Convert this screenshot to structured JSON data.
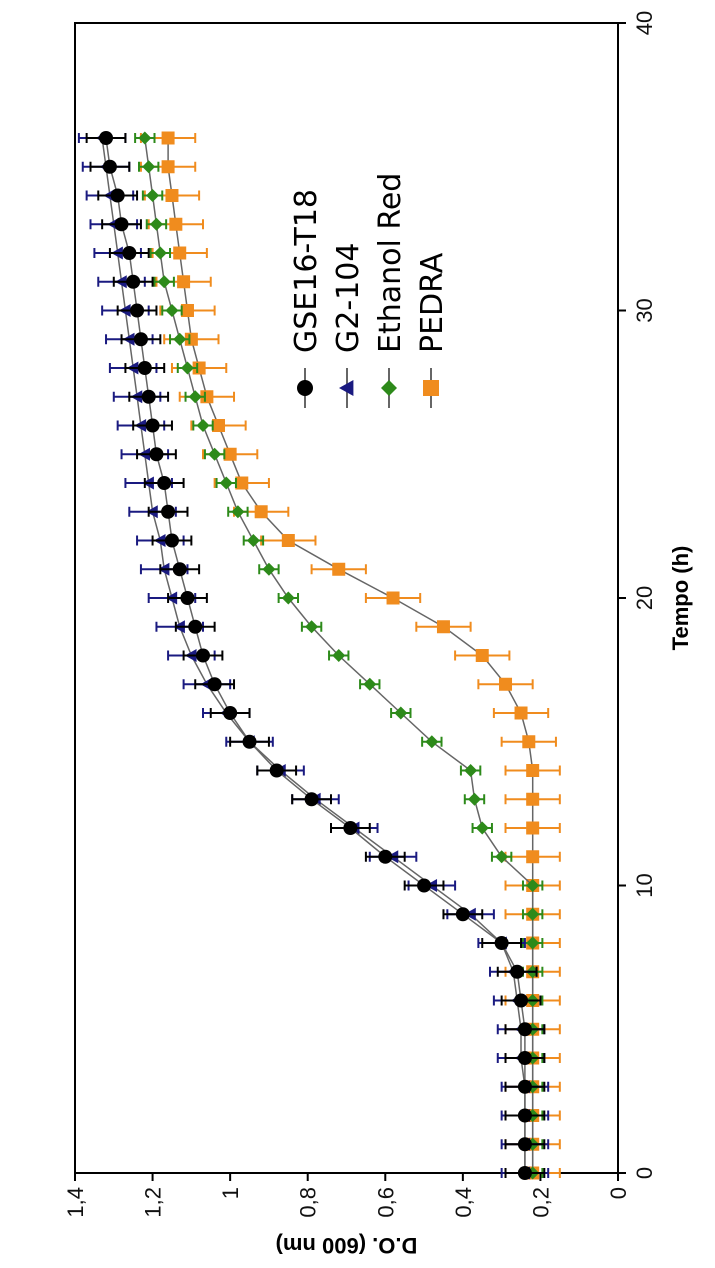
{
  "chart_data": {
    "type": "line",
    "xlabel": "Tempo (h)",
    "ylabel": "D.O. (600 nm)",
    "xlim": [
      0,
      40
    ],
    "ylim": [
      0,
      1.4
    ],
    "x_ticks": [
      "0",
      "10",
      "20",
      "30",
      "40"
    ],
    "y_ticks": [
      "0",
      "0,2",
      "0,4",
      "0,6",
      "0,8",
      "1",
      "1,2",
      "1,4"
    ],
    "legend_placement": "top-right",
    "grid": false,
    "series": [
      {
        "name": "GSE16-T18",
        "color": "#000000",
        "marker": "circle",
        "x": [
          0,
          1,
          2,
          3,
          4,
          5,
          6,
          7,
          8,
          9,
          10,
          11,
          12,
          13,
          14,
          15,
          16,
          17,
          18,
          19,
          20,
          21,
          22,
          23,
          24,
          25,
          26,
          27,
          28,
          29,
          30,
          31,
          32,
          33,
          34,
          35,
          36
        ],
        "y": [
          0.24,
          0.24,
          0.24,
          0.24,
          0.24,
          0.24,
          0.25,
          0.26,
          0.3,
          0.4,
          0.5,
          0.6,
          0.69,
          0.79,
          0.88,
          0.95,
          1.0,
          1.04,
          1.07,
          1.09,
          1.11,
          1.13,
          1.15,
          1.16,
          1.17,
          1.19,
          1.2,
          1.21,
          1.22,
          1.23,
          1.24,
          1.25,
          1.26,
          1.28,
          1.29,
          1.31,
          1.32
        ],
        "error": 0.05
      },
      {
        "name": "G2-104",
        "color": "#1a1a80",
        "marker": "triangle",
        "x": [
          0,
          1,
          2,
          3,
          4,
          5,
          6,
          7,
          8,
          9,
          10,
          11,
          12,
          13,
          14,
          15,
          16,
          17,
          18,
          19,
          20,
          21,
          22,
          23,
          24,
          25,
          26,
          27,
          28,
          29,
          30,
          31,
          32,
          33,
          34,
          35,
          36
        ],
        "y": [
          0.24,
          0.24,
          0.24,
          0.24,
          0.25,
          0.25,
          0.26,
          0.27,
          0.3,
          0.38,
          0.48,
          0.58,
          0.68,
          0.78,
          0.87,
          0.95,
          1.01,
          1.06,
          1.1,
          1.13,
          1.15,
          1.17,
          1.18,
          1.2,
          1.21,
          1.22,
          1.23,
          1.24,
          1.25,
          1.26,
          1.27,
          1.28,
          1.29,
          1.3,
          1.31,
          1.32,
          1.33
        ],
        "error": 0.06
      },
      {
        "name": "Ethanol Red",
        "color": "#2d8a1a",
        "marker": "diamond",
        "x": [
          0,
          1,
          2,
          3,
          4,
          5,
          6,
          7,
          8,
          9,
          10,
          11,
          12,
          13,
          14,
          15,
          16,
          17,
          18,
          19,
          20,
          21,
          22,
          23,
          24,
          25,
          26,
          27,
          28,
          29,
          30,
          31,
          32,
          33,
          34,
          35,
          36
        ],
        "y": [
          0.22,
          0.22,
          0.22,
          0.22,
          0.22,
          0.22,
          0.22,
          0.22,
          0.22,
          0.22,
          0.22,
          0.3,
          0.35,
          0.37,
          0.38,
          0.48,
          0.56,
          0.64,
          0.72,
          0.79,
          0.85,
          0.9,
          0.94,
          0.98,
          1.01,
          1.04,
          1.07,
          1.09,
          1.11,
          1.13,
          1.15,
          1.17,
          1.18,
          1.19,
          1.2,
          1.21,
          1.22
        ],
        "error": 0.025
      },
      {
        "name": "PEDRA",
        "color": "#f08c1e",
        "marker": "square",
        "x": [
          0,
          1,
          2,
          3,
          4,
          5,
          6,
          7,
          8,
          9,
          10,
          11,
          12,
          13,
          14,
          15,
          16,
          17,
          18,
          19,
          20,
          21,
          22,
          23,
          24,
          25,
          26,
          27,
          28,
          29,
          30,
          31,
          32,
          33,
          34,
          35,
          36
        ],
        "y": [
          0.22,
          0.22,
          0.22,
          0.22,
          0.22,
          0.22,
          0.22,
          0.22,
          0.22,
          0.22,
          0.22,
          0.22,
          0.22,
          0.22,
          0.22,
          0.23,
          0.25,
          0.29,
          0.35,
          0.45,
          0.58,
          0.72,
          0.85,
          0.92,
          0.97,
          1.0,
          1.03,
          1.06,
          1.08,
          1.1,
          1.11,
          1.12,
          1.13,
          1.14,
          1.15,
          1.16,
          1.16
        ],
        "error": 0.07
      }
    ]
  }
}
